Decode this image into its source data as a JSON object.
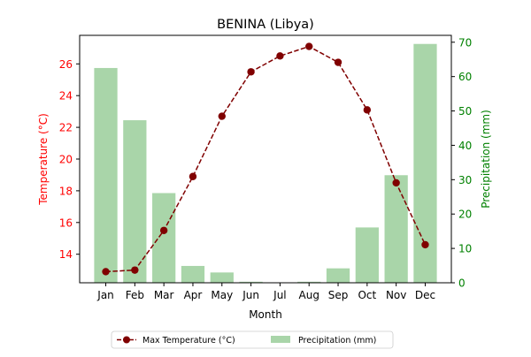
{
  "chart_data": {
    "type": "bar+line",
    "title": "BENINA (Libya)",
    "xlabel": "Month",
    "ylabel_left": "Temperature (°C)",
    "ylabel_right": "Precipitation (mm)",
    "categories": [
      "Jan",
      "Feb",
      "Mar",
      "Apr",
      "May",
      "Jun",
      "Jul",
      "Aug",
      "Sep",
      "Oct",
      "Nov",
      "Dec"
    ],
    "ylim_left": [
      12.2,
      27.8
    ],
    "yticks_left": [
      14,
      16,
      18,
      20,
      22,
      24,
      26
    ],
    "ylim_right": [
      0,
      72
    ],
    "yticks_right": [
      0,
      10,
      20,
      30,
      40,
      50,
      60,
      70
    ],
    "series": [
      {
        "name": "Max Temperature (°C)",
        "type": "line",
        "axis": "left",
        "values": [
          12.9,
          13.0,
          15.5,
          18.9,
          22.7,
          25.5,
          26.5,
          27.1,
          26.1,
          23.1,
          18.5,
          14.6
        ]
      },
      {
        "name": "Precipitation (mm)",
        "type": "bar",
        "axis": "right",
        "values": [
          62.5,
          47.3,
          26.1,
          4.9,
          3.0,
          0.3,
          0.1,
          0.3,
          4.2,
          16.1,
          31.3,
          69.5
        ]
      }
    ],
    "colors": {
      "temperature": "#800000",
      "precip": "#a9d5a9",
      "left_axis": "#ff0000",
      "right_axis": "#008000"
    },
    "legend_position": "bottom-center",
    "grid": false
  }
}
